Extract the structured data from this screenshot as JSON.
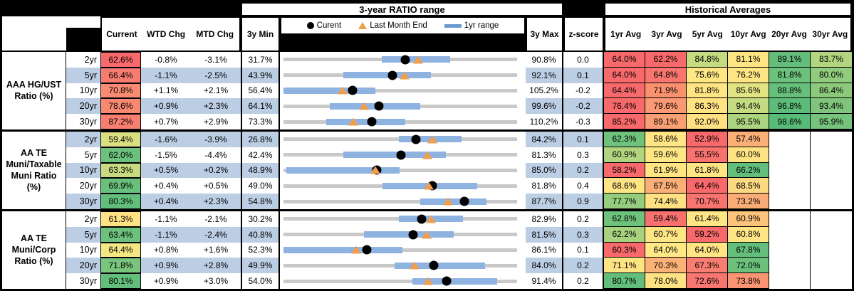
{
  "titles": {
    "range": "3-year RATIO range",
    "hist": "Historical Averages"
  },
  "legend": {
    "current": "Curent",
    "lme": "Last Month End",
    "range1yr": "1yr range"
  },
  "columns": {
    "current": "Current",
    "wtd": "WTD Chg",
    "mtd": "MTD Chg",
    "min": "3y Min",
    "max": "3y Max",
    "z": "z-score",
    "avgs": [
      "1yr Avg",
      "3yr Avg",
      "5yr Avg",
      "10yr Avg",
      "20yr Avg",
      "30yr Avg"
    ]
  },
  "colors": {
    "row_shade": "#BCCEE4",
    "bar": "#8FB3E1",
    "track": "#C9C9C9",
    "triangle": "#EF9E4E",
    "legend_bar": "#6B9BD2",
    "scale_red": "#F8696B",
    "scale_yellow": "#FFE583",
    "scale_green": "#63BE7B"
  },
  "groups": [
    {
      "label_lines": [
        "AAA HG/UST",
        "Ratio (%)"
      ],
      "rows": [
        {
          "term": "2yr",
          "shaded": false,
          "current": "62.6%",
          "current_color": "#F8696B",
          "wtd": "-0.8%",
          "mtd": "-3.1%",
          "min": "31.7%",
          "max": "90.8%",
          "z": "0.0",
          "chart": {
            "min": 31.7,
            "max": 90.8,
            "bar": [
              56.5,
              73.8
            ],
            "dot": 62.6,
            "tri": 65.7
          },
          "avgs": [
            {
              "v": "64.0%",
              "c": "#F8696B"
            },
            {
              "v": "62.2%",
              "c": "#F8696B"
            },
            {
              "v": "84.8%",
              "c": "#C3DB81"
            },
            {
              "v": "81.1%",
              "c": "#FFE483"
            },
            {
              "v": "89.1%",
              "c": "#63BE7B"
            },
            {
              "v": "83.7%",
              "c": "#B3D57F"
            }
          ]
        },
        {
          "term": "5yr",
          "shaded": true,
          "current": "66.4%",
          "current_color": "#F87B70",
          "wtd": "-1.1%",
          "mtd": "-2.5%",
          "min": "43.9%",
          "max": "92.1%",
          "z": "0.1",
          "chart": {
            "min": 43.9,
            "max": 92.1,
            "bar": [
              56.3,
              74.3
            ],
            "dot": 66.4,
            "tri": 68.9
          },
          "avgs": [
            {
              "v": "64.0%",
              "c": "#F8696B"
            },
            {
              "v": "64.8%",
              "c": "#F9756F"
            },
            {
              "v": "75.6%",
              "c": "#FFE884"
            },
            {
              "v": "76.2%",
              "c": "#FFE684"
            },
            {
              "v": "81.8%",
              "c": "#6CC17C"
            },
            {
              "v": "80.0%",
              "c": "#90CB7E"
            }
          ]
        },
        {
          "term": "10yr",
          "shaded": false,
          "current": "70.8%",
          "current_color": "#F98B72",
          "wtd": "+1.1%",
          "mtd": "+2.1%",
          "min": "56.4%",
          "max": "105.2%",
          "z": "-0.2",
          "chart": {
            "min": 56.4,
            "max": 105.2,
            "bar": [
              56.4,
              75.6
            ],
            "dot": 70.8,
            "tri": 68.7
          },
          "avgs": [
            {
              "v": "64.4%",
              "c": "#F8696B"
            },
            {
              "v": "71.9%",
              "c": "#F9916F"
            },
            {
              "v": "81.8%",
              "c": "#FFE584"
            },
            {
              "v": "85.6%",
              "c": "#E2E383"
            },
            {
              "v": "88.8%",
              "c": "#66BF7B"
            },
            {
              "v": "86.4%",
              "c": "#8DC97D"
            }
          ]
        },
        {
          "term": "20yr",
          "shaded": true,
          "current": "78.6%",
          "current_color": "#F98871",
          "wtd": "+0.9%",
          "mtd": "+2.3%",
          "min": "64.1%",
          "max": "99.6%",
          "z": "-0.2",
          "chart": {
            "min": 64.1,
            "max": 99.6,
            "bar": [
              71.1,
              84.9
            ],
            "dot": 78.6,
            "tri": 76.3
          },
          "avgs": [
            {
              "v": "76.4%",
              "c": "#F8696B"
            },
            {
              "v": "79.6%",
              "c": "#FA9973"
            },
            {
              "v": "86.3%",
              "c": "#FFE383"
            },
            {
              "v": "94.4%",
              "c": "#C4DB81"
            },
            {
              "v": "96.8%",
              "c": "#5DBC79"
            },
            {
              "v": "93.4%",
              "c": "#7FC57D"
            }
          ]
        },
        {
          "term": "30yr",
          "shaded": false,
          "current": "87.2%",
          "current_color": "#F87F70",
          "wtd": "+0.7%",
          "mtd": "+2.9%",
          "min": "73.3%",
          "max": "110.2%",
          "z": "-0.3",
          "chart": {
            "min": 73.3,
            "max": 110.2,
            "bar": [
              80.0,
              92.5
            ],
            "dot": 87.2,
            "tri": 84.3
          },
          "avgs": [
            {
              "v": "85.2%",
              "c": "#F8696B"
            },
            {
              "v": "89.1%",
              "c": "#FA9F74"
            },
            {
              "v": "92.0%",
              "c": "#FFE183"
            },
            {
              "v": "95.5%",
              "c": "#ACD37F"
            },
            {
              "v": "98.6%",
              "c": "#59BB79"
            },
            {
              "v": "95.9%",
              "c": "#76C47C"
            }
          ]
        }
      ]
    },
    {
      "label_lines": [
        "AA TE",
        "Muni/Taxable",
        "Muni Ratio",
        "(%)"
      ],
      "rows": [
        {
          "term": "2yr",
          "shaded": true,
          "current": "59.4%",
          "current_color": "#DAE082",
          "wtd": "-1.6%",
          "mtd": "-3.9%",
          "min": "26.8%",
          "max": "84.2%",
          "z": "0.1",
          "chart": {
            "min": 26.8,
            "max": 84.2,
            "bar": [
              55.2,
              70.6
            ],
            "dot": 59.4,
            "tri": 63.3
          },
          "avgs": [
            {
              "v": "62.3%",
              "c": "#6EC27C"
            },
            {
              "v": "58.6%",
              "c": "#FFE583"
            },
            {
              "v": "52.9%",
              "c": "#F8696B"
            },
            {
              "v": "57.4%",
              "c": "#FBAE76"
            },
            null,
            null
          ]
        },
        {
          "term": "5yr",
          "shaded": false,
          "current": "62.0%",
          "current_color": "#6CC17C",
          "wtd": "-1.5%",
          "mtd": "-4.4%",
          "min": "42.4%",
          "max": "81.3%",
          "z": "0.3",
          "chart": {
            "min": 42.4,
            "max": 81.3,
            "bar": [
              52.4,
              69.5
            ],
            "dot": 62.0,
            "tri": 66.4
          },
          "avgs": [
            {
              "v": "60.9%",
              "c": "#B1D57F"
            },
            {
              "v": "59.6%",
              "c": "#FFE785"
            },
            {
              "v": "55.5%",
              "c": "#F8726E"
            },
            {
              "v": "60.0%",
              "c": "#FFE383"
            },
            null,
            null
          ]
        },
        {
          "term": "10yr",
          "shaded": true,
          "current": "63.3%",
          "current_color": "#C8DB81",
          "wtd": "+0.5%",
          "mtd": "+0.2%",
          "min": "48.9%",
          "max": "85.0%",
          "z": "0.2",
          "chart": {
            "min": 48.9,
            "max": 85.0,
            "bar": [
              49.3,
              66.8
            ],
            "dot": 63.3,
            "tri": 63.1
          },
          "avgs": [
            {
              "v": "58.2%",
              "c": "#F8696B"
            },
            {
              "v": "61.9%",
              "c": "#FFE584"
            },
            {
              "v": "61.8%",
              "c": "#FFE584"
            },
            {
              "v": "66.2%",
              "c": "#63BE7B"
            },
            null,
            null
          ]
        },
        {
          "term": "20yr",
          "shaded": false,
          "current": "69.9%",
          "current_color": "#68C07B",
          "wtd": "+0.4%",
          "mtd": "+0.5%",
          "min": "49.0%",
          "max": "81.8%",
          "z": "0.4",
          "chart": {
            "min": 49.0,
            "max": 81.8,
            "bar": [
              62.9,
              76.2
            ],
            "dot": 69.9,
            "tri": 69.4
          },
          "avgs": [
            {
              "v": "68.6%",
              "c": "#FFE483"
            },
            {
              "v": "67.5%",
              "c": "#FBAE76"
            },
            {
              "v": "64.4%",
              "c": "#F8696B"
            },
            {
              "v": "68.5%",
              "c": "#FDD981"
            },
            null,
            null
          ]
        },
        {
          "term": "30yr",
          "shaded": true,
          "current": "80.3%",
          "current_color": "#63BE7B",
          "wtd": "+0.4%",
          "mtd": "+2.3%",
          "min": "54.8%",
          "max": "87.7%",
          "z": "0.9",
          "chart": {
            "min": 54.8,
            "max": 87.7,
            "bar": [
              74.1,
              83.4
            ],
            "dot": 80.3,
            "tri": 78.0
          },
          "avgs": [
            {
              "v": "77.7%",
              "c": "#95CD7E"
            },
            {
              "v": "74.4%",
              "c": "#FFE083"
            },
            {
              "v": "70.7%",
              "c": "#F8746F"
            },
            {
              "v": "73.2%",
              "c": "#FBAC76"
            },
            null,
            null
          ]
        }
      ]
    },
    {
      "label_lines": [
        "AA TE",
        "Muni/Corp",
        "Ratio (%)"
      ],
      "rows": [
        {
          "term": "2yr",
          "shaded": false,
          "current": "61.3%",
          "current_color": "#FFE283",
          "wtd": "-1.1%",
          "mtd": "-2.1%",
          "min": "30.2%",
          "max": "82.9%",
          "z": "0.2",
          "chart": {
            "min": 30.2,
            "max": 82.9,
            "bar": [
              56.3,
              70.7
            ],
            "dot": 61.3,
            "tri": 63.4
          },
          "avgs": [
            {
              "v": "62.8%",
              "c": "#6EC27C"
            },
            {
              "v": "59.4%",
              "c": "#F8716E"
            },
            {
              "v": "61.4%",
              "c": "#FFE684"
            },
            {
              "v": "60.9%",
              "c": "#FBC47A"
            },
            null,
            null
          ]
        },
        {
          "term": "5yr",
          "shaded": true,
          "current": "63.4%",
          "current_color": "#6CC17C",
          "wtd": "-1.1%",
          "mtd": "-2.4%",
          "min": "40.8%",
          "max": "81.5%",
          "z": "0.3",
          "chart": {
            "min": 40.8,
            "max": 81.5,
            "bar": [
              54.8,
              70.4
            ],
            "dot": 63.4,
            "tri": 65.8
          },
          "avgs": [
            {
              "v": "62.2%",
              "c": "#A7D27E"
            },
            {
              "v": "60.7%",
              "c": "#FFE684"
            },
            {
              "v": "59.2%",
              "c": "#F8696B"
            },
            {
              "v": "60.8%",
              "c": "#FFE584"
            },
            null,
            null
          ]
        },
        {
          "term": "10yr",
          "shaded": false,
          "current": "64.4%",
          "current_color": "#F4E683",
          "wtd": "+0.8%",
          "mtd": "+1.6%",
          "min": "52.3%",
          "max": "86.1%",
          "z": "0.1",
          "chart": {
            "min": 52.3,
            "max": 86.1,
            "bar": [
              52.3,
              69.5
            ],
            "dot": 64.4,
            "tri": 62.8
          },
          "avgs": [
            {
              "v": "60.3%",
              "c": "#F8696B"
            },
            {
              "v": "64.0%",
              "c": "#FFE986"
            },
            {
              "v": "64.0%",
              "c": "#FFE584"
            },
            {
              "v": "67.8%",
              "c": "#63BE7B"
            },
            null,
            null
          ]
        },
        {
          "term": "20yr",
          "shaded": true,
          "current": "71.8%",
          "current_color": "#79C57D",
          "wtd": "+0.9%",
          "mtd": "+2.8%",
          "min": "49.9%",
          "max": "84.0%",
          "z": "0.2",
          "chart": {
            "min": 49.9,
            "max": 84.0,
            "bar": [
              66.1,
              79.3
            ],
            "dot": 71.8,
            "tri": 69.0
          },
          "avgs": [
            {
              "v": "71.1%",
              "c": "#FFE483"
            },
            {
              "v": "70.3%",
              "c": "#FBB277"
            },
            {
              "v": "67.3%",
              "c": "#F87E71"
            },
            {
              "v": "72.0%",
              "c": "#6CC07C"
            },
            null,
            null
          ]
        },
        {
          "term": "30yr",
          "shaded": false,
          "current": "80.1%",
          "current_color": "#63BE7B",
          "wtd": "+0.9%",
          "mtd": "+3.0%",
          "min": "54.0%",
          "max": "91.4%",
          "z": "0.2",
          "chart": {
            "min": 54.0,
            "max": 91.4,
            "bar": [
              74.6,
              88.2
            ],
            "dot": 80.1,
            "tri": 77.1
          },
          "avgs": [
            {
              "v": "80.7%",
              "c": "#63BE7B"
            },
            {
              "v": "78.0%",
              "c": "#FFE283"
            },
            {
              "v": "72.6%",
              "c": "#F8766F"
            },
            {
              "v": "73.8%",
              "c": "#FA9472"
            },
            null,
            null
          ]
        }
      ]
    }
  ],
  "chart_data": {
    "type": "range-bullet",
    "title": "3-year RATIO range",
    "legend": [
      "Curent",
      "Last Month End",
      "1yr range"
    ],
    "note": "each row spans 3y Min to 3y Max; blue bar = 1yr range; dot = current; triangle = last month end",
    "rows": [
      {
        "group": "AAA HG/UST Ratio (%)",
        "term": "2yr",
        "min3y": 31.7,
        "max3y": 90.8,
        "range1yr": [
          56.5,
          73.8
        ],
        "current": 62.6,
        "last_month_end": 65.7
      },
      {
        "group": "AAA HG/UST Ratio (%)",
        "term": "5yr",
        "min3y": 43.9,
        "max3y": 92.1,
        "range1yr": [
          56.3,
          74.3
        ],
        "current": 66.4,
        "last_month_end": 68.9
      },
      {
        "group": "AAA HG/UST Ratio (%)",
        "term": "10yr",
        "min3y": 56.4,
        "max3y": 105.2,
        "range1yr": [
          56.4,
          75.6
        ],
        "current": 70.8,
        "last_month_end": 68.7
      },
      {
        "group": "AAA HG/UST Ratio (%)",
        "term": "20yr",
        "min3y": 64.1,
        "max3y": 99.6,
        "range1yr": [
          71.1,
          84.9
        ],
        "current": 78.6,
        "last_month_end": 76.3
      },
      {
        "group": "AAA HG/UST Ratio (%)",
        "term": "30yr",
        "min3y": 73.3,
        "max3y": 110.2,
        "range1yr": [
          80.0,
          92.5
        ],
        "current": 87.2,
        "last_month_end": 84.3
      },
      {
        "group": "AA TE Muni/Taxable Muni Ratio (%)",
        "term": "2yr",
        "min3y": 26.8,
        "max3y": 84.2,
        "range1yr": [
          55.2,
          70.6
        ],
        "current": 59.4,
        "last_month_end": 63.3
      },
      {
        "group": "AA TE Muni/Taxable Muni Ratio (%)",
        "term": "5yr",
        "min3y": 42.4,
        "max3y": 81.3,
        "range1yr": [
          52.4,
          69.5
        ],
        "current": 62.0,
        "last_month_end": 66.4
      },
      {
        "group": "AA TE Muni/Taxable Muni Ratio (%)",
        "term": "10yr",
        "min3y": 48.9,
        "max3y": 85.0,
        "range1yr": [
          49.3,
          66.8
        ],
        "current": 63.3,
        "last_month_end": 63.1
      },
      {
        "group": "AA TE Muni/Taxable Muni Ratio (%)",
        "term": "20yr",
        "min3y": 49.0,
        "max3y": 81.8,
        "range1yr": [
          62.9,
          76.2
        ],
        "current": 69.9,
        "last_month_end": 69.4
      },
      {
        "group": "AA TE Muni/Taxable Muni Ratio (%)",
        "term": "30yr",
        "min3y": 54.8,
        "max3y": 87.7,
        "range1yr": [
          74.1,
          83.4
        ],
        "current": 80.3,
        "last_month_end": 78.0
      },
      {
        "group": "AA TE Muni/Corp Ratio (%)",
        "term": "2yr",
        "min3y": 30.2,
        "max3y": 82.9,
        "range1yr": [
          56.3,
          70.7
        ],
        "current": 61.3,
        "last_month_end": 63.4
      },
      {
        "group": "AA TE Muni/Corp Ratio (%)",
        "term": "5yr",
        "min3y": 40.8,
        "max3y": 81.5,
        "range1yr": [
          54.8,
          70.4
        ],
        "current": 63.4,
        "last_month_end": 65.8
      },
      {
        "group": "AA TE Muni/Corp Ratio (%)",
        "term": "10yr",
        "min3y": 52.3,
        "max3y": 86.1,
        "range1yr": [
          52.3,
          69.5
        ],
        "current": 64.4,
        "last_month_end": 62.8
      },
      {
        "group": "AA TE Muni/Corp Ratio (%)",
        "term": "20yr",
        "min3y": 49.9,
        "max3y": 84.0,
        "range1yr": [
          66.1,
          79.3
        ],
        "current": 71.8,
        "last_month_end": 69.0
      },
      {
        "group": "AA TE Muni/Corp Ratio (%)",
        "term": "30yr",
        "min3y": 54.0,
        "max3y": 91.4,
        "range1yr": [
          74.6,
          88.2
        ],
        "current": 80.1,
        "last_month_end": 77.1
      }
    ]
  }
}
